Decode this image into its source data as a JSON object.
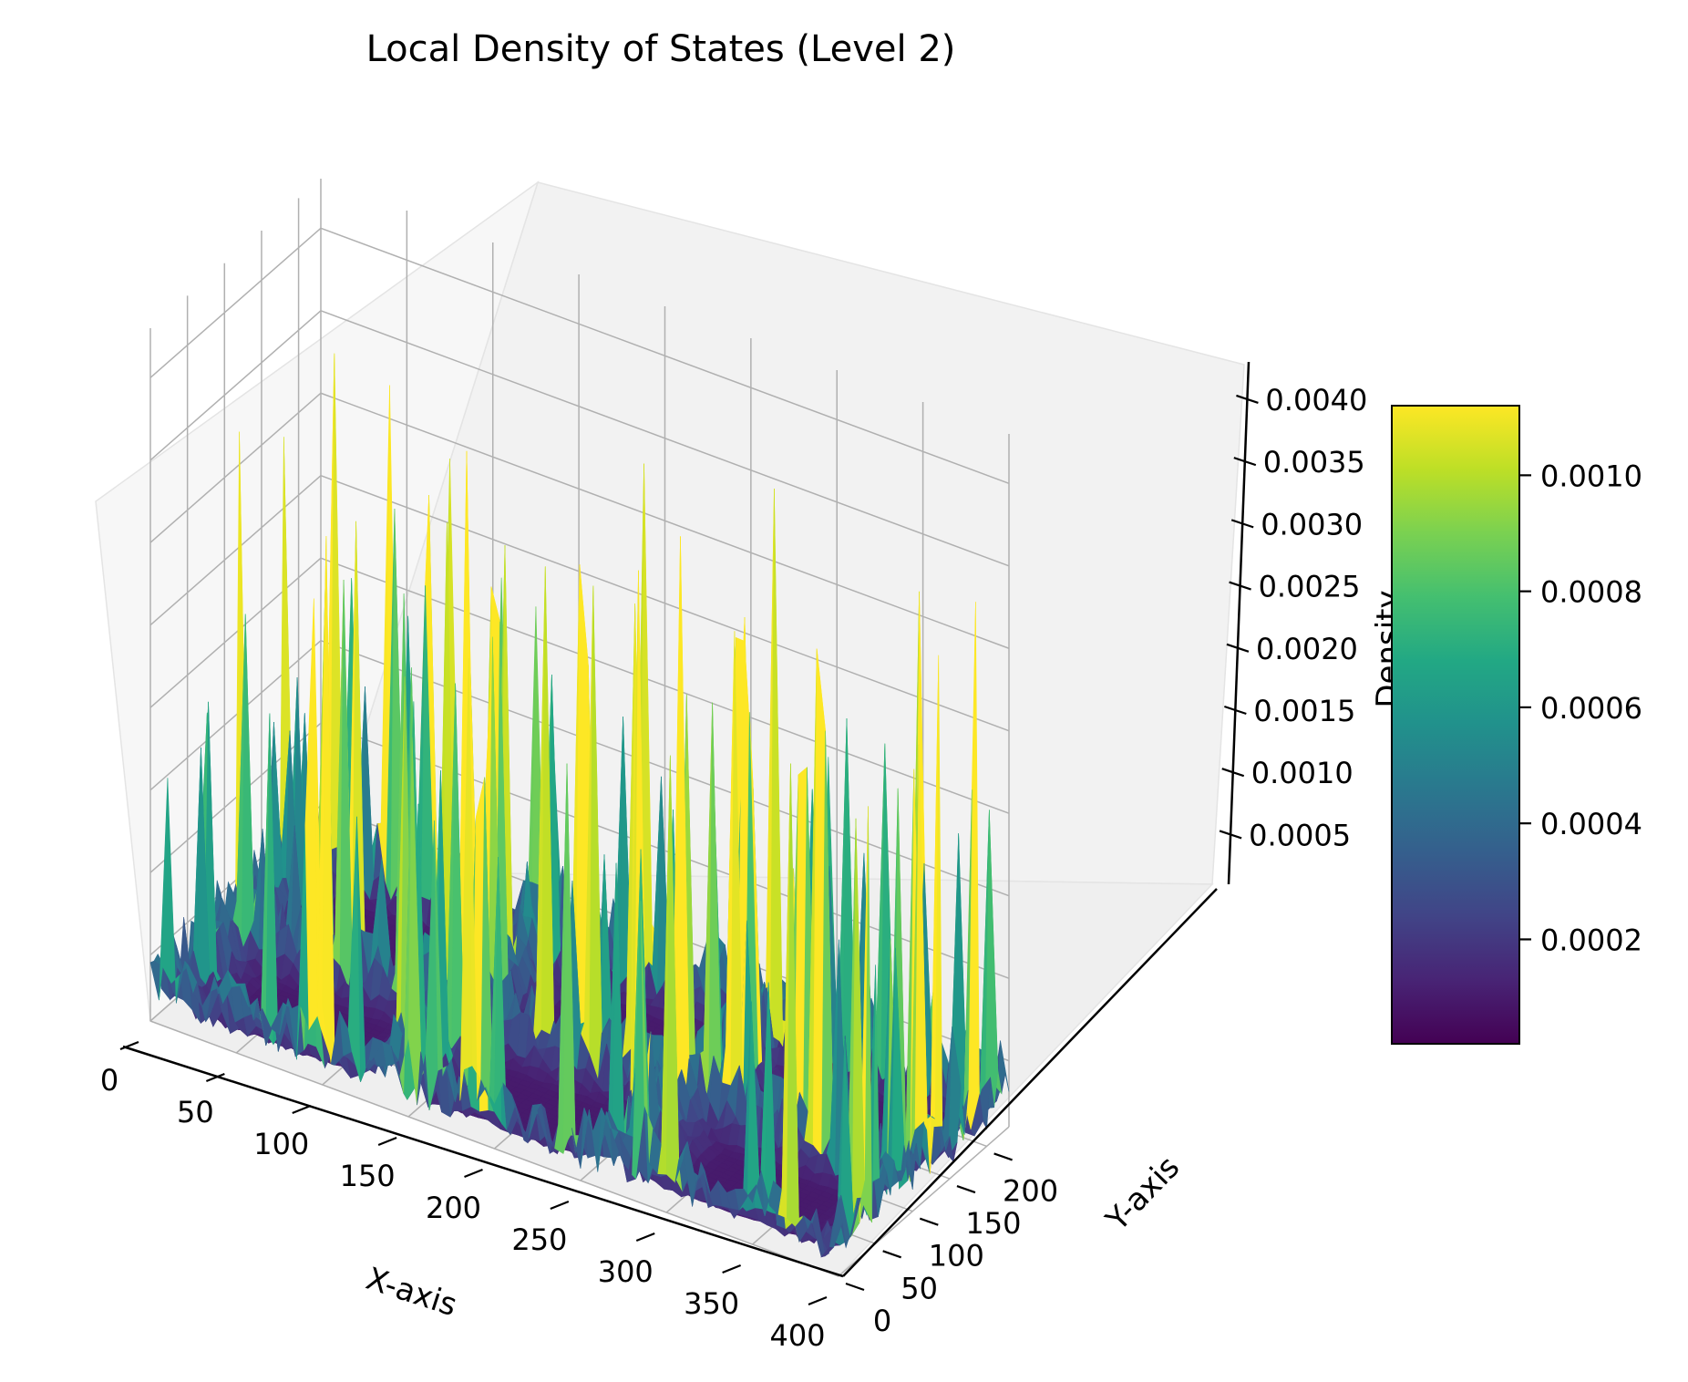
{
  "chart_data": {
    "type": "surface3d",
    "title": "Local Density of States (Level 2)",
    "xlabel": "X-axis",
    "ylabel": "Y-axis",
    "zlabel": "Density",
    "x_ticks": [
      0,
      50,
      100,
      150,
      200,
      250,
      300,
      350,
      400
    ],
    "y_ticks": [
      0,
      50,
      100,
      150,
      200
    ],
    "z_ticks": [
      "0.0005",
      "0.0010",
      "0.0015",
      "0.0020",
      "0.0025",
      "0.0030",
      "0.0035",
      "0.0040"
    ],
    "xlim": [
      0,
      400
    ],
    "ylim": [
      0,
      230
    ],
    "zlim": [
      0.0001,
      0.0043
    ],
    "colormap": "viridis",
    "colorbar": {
      "ticks": [
        "0.0002",
        "0.0004",
        "0.0006",
        "0.0008",
        "0.0010"
      ],
      "range": [
        2e-05,
        0.00112
      ]
    },
    "surface_description": {
      "base_level": 0.0001,
      "peak_rows_y": [
        0,
        115,
        230
      ],
      "peak_cols_x": [
        0,
        135,
        265,
        400
      ],
      "max_peak": 0.0041
    },
    "grid": true
  }
}
